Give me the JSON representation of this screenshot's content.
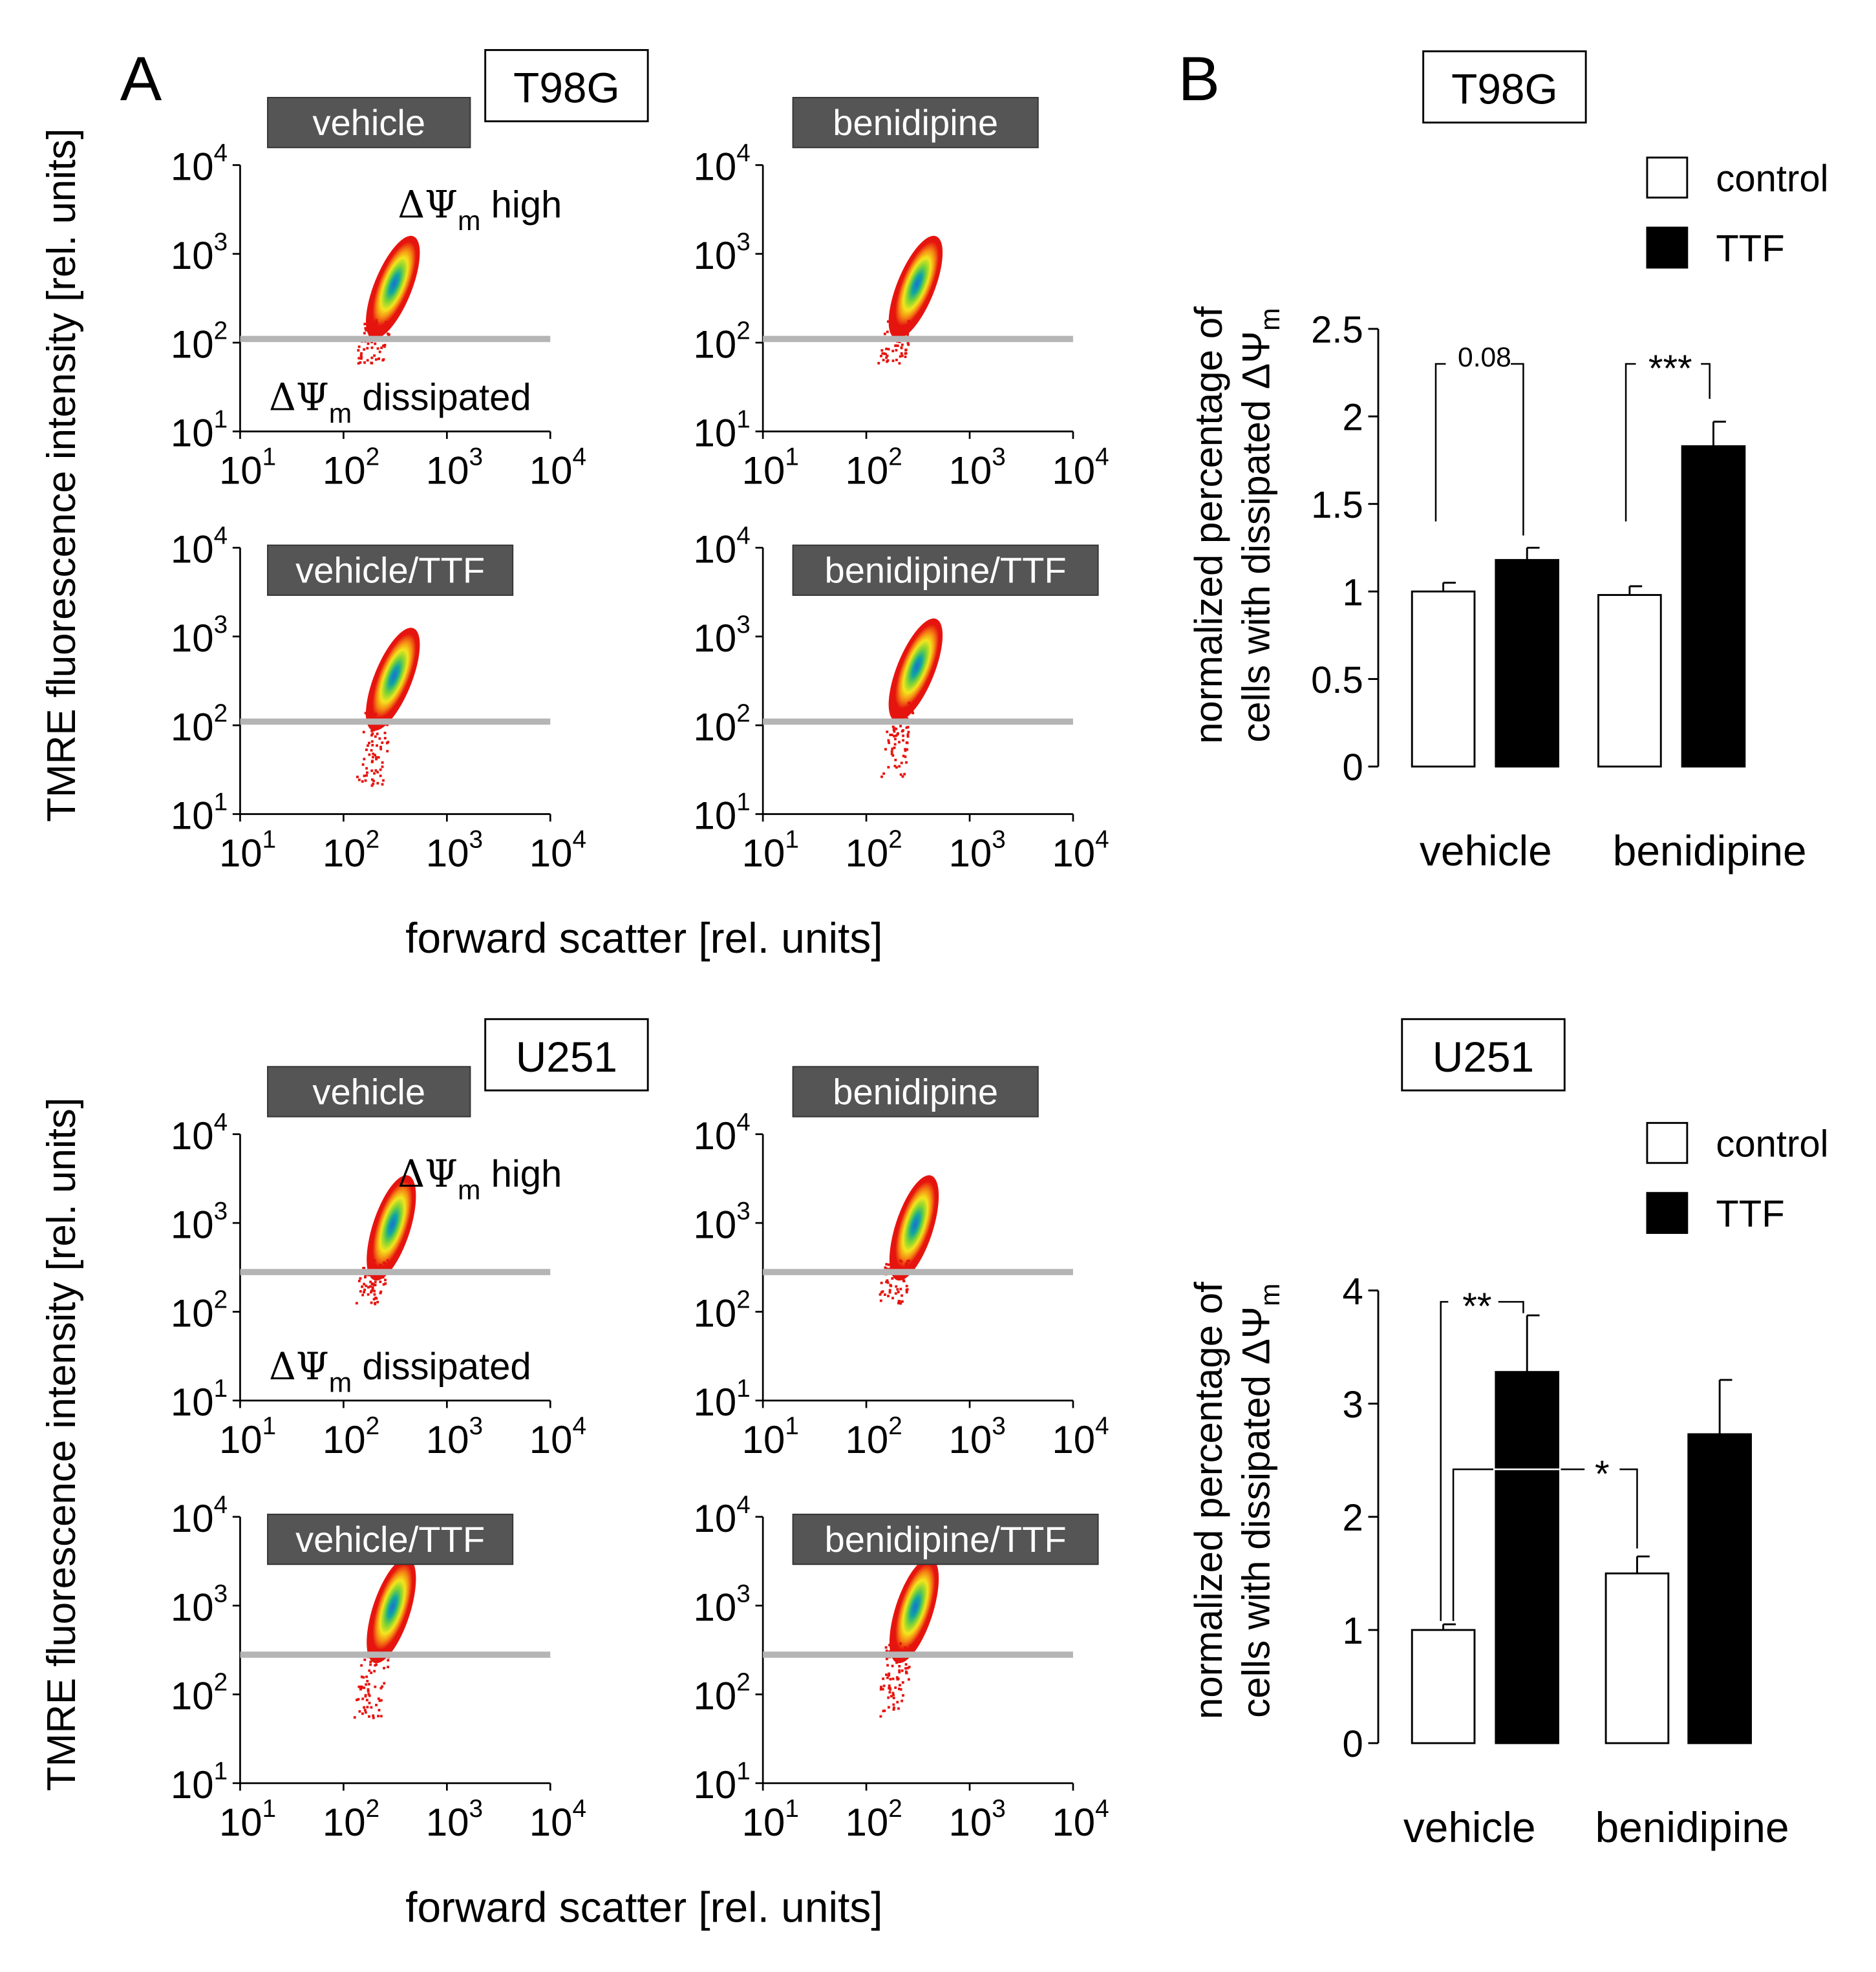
{
  "figure": {
    "panel_a_letter": "A",
    "panel_b_letter": "B",
    "flow_y_label": "TMRE fluorescence intensity [rel. units]",
    "flow_x_label": "forward scatter [rel. units]",
    "label_high": "high",
    "label_dissipated": "dissipated",
    "delta_psi": "ΔΨ",
    "psi_sub": "m",
    "bar_y_label_line1": "normalized percentage of",
    "bar_y_label_line2": "cells with dissipated ΔΨ",
    "legend_control": "control",
    "legend_ttf": "TTF",
    "tick_base": "10",
    "tick_exps": [
      "1",
      "2",
      "3",
      "4"
    ]
  },
  "cell_lines": [
    {
      "name": "T98G",
      "flow_panels": [
        {
          "label": "vehicle"
        },
        {
          "label": "benidipine"
        },
        {
          "label": "vehicle/TTF"
        },
        {
          "label": "benidipine/TTF"
        }
      ]
    },
    {
      "name": "U251",
      "flow_panels": [
        {
          "label": "vehicle"
        },
        {
          "label": "benidipine"
        },
        {
          "label": "vehicle/TTF"
        },
        {
          "label": "benidipine/TTF"
        }
      ]
    }
  ],
  "chart_data": [
    {
      "type": "scatter",
      "title": "T98G flow cytometry (density plots)",
      "panels": [
        "vehicle",
        "benidipine",
        "vehicle/TTF",
        "benidipine/TTF"
      ],
      "xlabel": "forward scatter [rel. units]",
      "ylabel": "TMRE fluorescence intensity [rel. units]",
      "xscale": "log",
      "yscale": "log",
      "xlim": [
        10,
        10000
      ],
      "ylim": [
        10,
        10000
      ],
      "gate_threshold": 110,
      "annotations": [
        "ΔΨm high",
        "ΔΨm dissipated"
      ]
    },
    {
      "type": "scatter",
      "title": "U251 flow cytometry (density plots)",
      "panels": [
        "vehicle",
        "benidipine",
        "vehicle/TTF",
        "benidipine/TTF"
      ],
      "xlabel": "forward scatter [rel. units]",
      "ylabel": "TMRE fluorescence intensity [rel. units]",
      "xscale": "log",
      "yscale": "log",
      "xlim": [
        10,
        10000
      ],
      "ylim": [
        10,
        10000
      ],
      "gate_threshold": 280,
      "annotations": [
        "ΔΨm high",
        "ΔΨm dissipated"
      ]
    },
    {
      "type": "bar",
      "title": "T98G",
      "categories": [
        "vehicle",
        "benidipine"
      ],
      "series": [
        {
          "name": "control",
          "color": "#ffffff",
          "values": [
            1.0,
            0.98
          ],
          "errors": [
            0.05,
            0.05
          ]
        },
        {
          "name": "TTF",
          "color": "#000000",
          "values": [
            1.18,
            1.83
          ],
          "errors": [
            0.07,
            0.14
          ]
        }
      ],
      "ylabel": "normalized percentage of cells with dissipated ΔΨm",
      "ylim": [
        0,
        2.5
      ],
      "yticks": [
        "0",
        "0.5",
        "1",
        "1.5",
        "2",
        "2.5"
      ],
      "yticks_values": [
        0,
        0.5,
        1,
        1.5,
        2,
        2.5
      ],
      "significance": [
        {
          "label": "0.08",
          "from": "vehicle-control",
          "to": "vehicle-TTF"
        },
        {
          "label": "***",
          "from": "benidipine-control",
          "to": "benidipine-TTF"
        }
      ]
    },
    {
      "type": "bar",
      "title": "U251",
      "categories": [
        "vehicle",
        "benidipine"
      ],
      "series": [
        {
          "name": "control",
          "color": "#ffffff",
          "values": [
            1.0,
            1.5
          ],
          "errors": [
            0.05,
            0.15
          ]
        },
        {
          "name": "TTF",
          "color": "#000000",
          "values": [
            3.28,
            2.73
          ],
          "errors": [
            0.5,
            0.48
          ]
        }
      ],
      "ylabel": "normalized percentage of cells with dissipated ΔΨm",
      "ylim": [
        0,
        4
      ],
      "yticks": [
        "0",
        "1",
        "2",
        "3",
        "4"
      ],
      "yticks_values": [
        0,
        1,
        2,
        3,
        4
      ],
      "significance": [
        {
          "label": "**",
          "from": "vehicle-control",
          "to": "vehicle-TTF"
        },
        {
          "label": "*",
          "from": "vehicle-control",
          "to": "benidipine-control"
        }
      ]
    }
  ]
}
